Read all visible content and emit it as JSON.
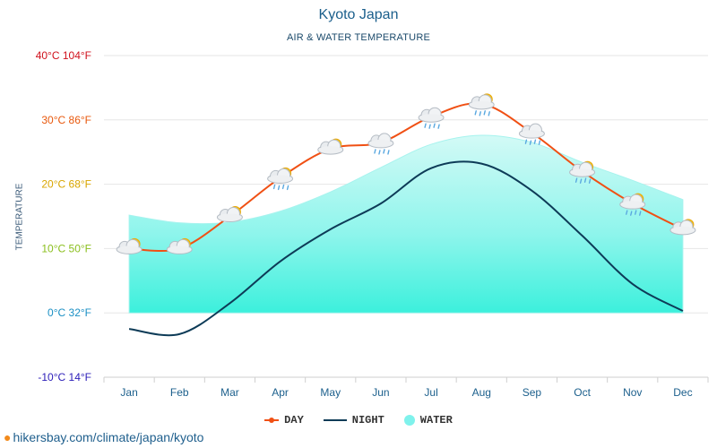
{
  "chart_data": {
    "type": "line",
    "title": "Kyoto Japan",
    "subtitle": "AIR & WATER TEMPERATURE",
    "ylabel": "TEMPERATURE",
    "categories": [
      "Jan",
      "Feb",
      "Mar",
      "Apr",
      "May",
      "Jun",
      "Jul",
      "Aug",
      "Sep",
      "Oct",
      "Nov",
      "Dec"
    ],
    "y_ticks": [
      {
        "value": 40,
        "label": "40°C 104°F",
        "color": "#d0111c"
      },
      {
        "value": 30,
        "label": "30°C 86°F",
        "color": "#e8580c"
      },
      {
        "value": 20,
        "label": "20°C 68°F",
        "color": "#d9a600"
      },
      {
        "value": 10,
        "label": "10°C 50°F",
        "color": "#8bbf1e"
      },
      {
        "value": 0,
        "label": "0°C 32°F",
        "color": "#1a8fc4"
      },
      {
        "value": -10,
        "label": "-10°C 14°F",
        "color": "#2b1db8"
      }
    ],
    "ylim": [
      -10,
      40
    ],
    "grid": true,
    "legend_position": "bottom",
    "series": [
      {
        "name": "DAY",
        "color": "#f05014",
        "values": [
          10,
          10,
          15,
          21,
          25.5,
          26.5,
          30.5,
          32.5,
          28,
          22,
          17,
          13
        ]
      },
      {
        "name": "NIGHT",
        "color": "#0d3b57",
        "values": [
          -2.5,
          -3.3,
          1.5,
          8,
          13,
          17,
          22.5,
          23.2,
          19,
          12,
          4.5,
          0.3
        ]
      },
      {
        "name": "WATER",
        "color": "#7ff2ec",
        "values": [
          15.2,
          14,
          14.1,
          15.8,
          18.8,
          22.6,
          26.2,
          27.6,
          26.5,
          23.4,
          20.6,
          17.6
        ]
      }
    ],
    "weather_icons": [
      "partly-cloudy",
      "partly-cloudy",
      "partly-cloudy",
      "partly-cloudy-rain",
      "partly-cloudy",
      "cloudy-rain",
      "cloudy-rain",
      "partly-cloudy-rain",
      "cloudy-rain",
      "partly-cloudy-rain",
      "partly-cloudy-rain",
      "partly-cloudy"
    ]
  },
  "legend": {
    "day": "DAY",
    "night": "NIGHT",
    "water": "WATER"
  },
  "source": "hikersbay.com/climate/japan/kyoto"
}
